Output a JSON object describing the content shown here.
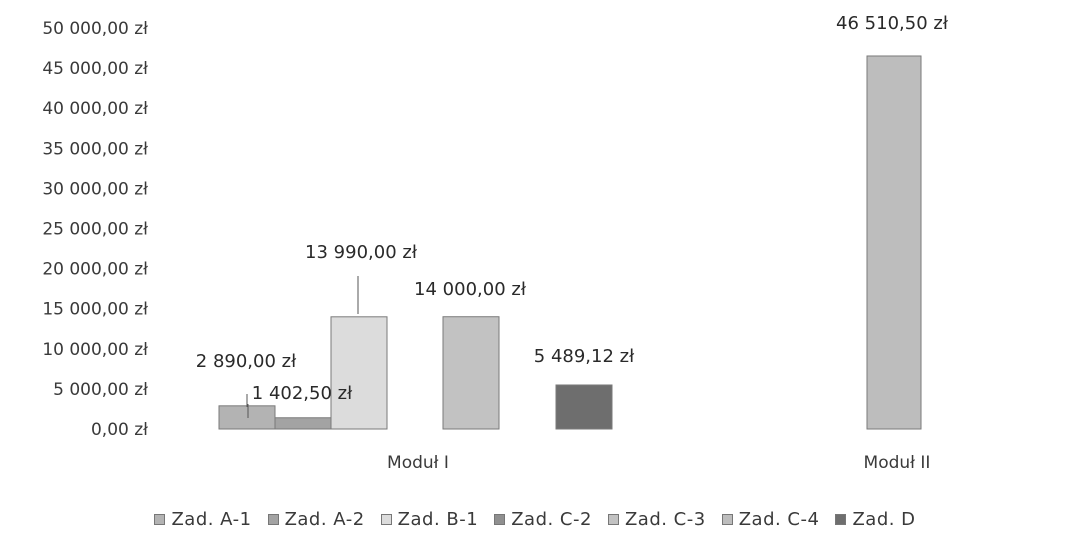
{
  "chart_data": {
    "type": "bar",
    "categories": [
      "Moduł I",
      "Moduł II"
    ],
    "series": [
      {
        "name": "Zad. A-1",
        "values": [
          2890.0,
          null
        ],
        "labels": [
          "2 890,00 zł",
          ""
        ],
        "color": "#b3b3b3"
      },
      {
        "name": "Zad. A-2",
        "values": [
          1402.5,
          null
        ],
        "labels": [
          "1 402,50 zł",
          ""
        ],
        "color": "#a3a3a3"
      },
      {
        "name": "Zad. B-1",
        "values": [
          13990.0,
          null
        ],
        "labels": [
          "13 990,00 zł",
          ""
        ],
        "color": "#dcdcdc"
      },
      {
        "name": "Zad. C-2",
        "values": [
          null,
          null
        ],
        "labels": [
          "",
          ""
        ],
        "color": "#8f8f8f"
      },
      {
        "name": "Zad. C-3",
        "values": [
          14000.0,
          null
        ],
        "labels": [
          "14 000,00 zł",
          ""
        ],
        "color": "#c2c2c2"
      },
      {
        "name": "Zad. C-4",
        "values": [
          null,
          46510.5
        ],
        "labels": [
          "",
          "46 510,50 zł"
        ],
        "color": "#bdbdbd"
      },
      {
        "name": "Zad. D",
        "values": [
          5489.12,
          null
        ],
        "labels": [
          "5 489,12 zł",
          ""
        ],
        "color": "#6e6e6e"
      }
    ],
    "y_ticks": [
      "0,00 zł",
      "5 000,00 zł",
      "10 000,00 zł",
      "15 000,00 zł",
      "20 000,00 zł",
      "25 000,00 zł",
      "30 000,00 zł",
      "35 000,00 zł",
      "40 000,00 zł",
      "45 000,00 zł",
      "50 000,00 zł"
    ],
    "ylim": [
      0,
      50000
    ],
    "legend_position": "bottom",
    "grid": false
  }
}
